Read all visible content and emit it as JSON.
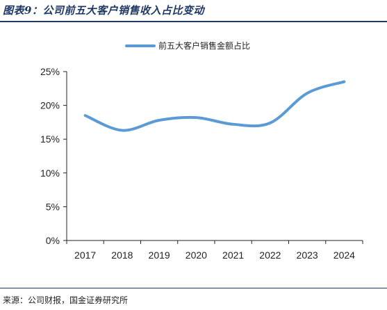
{
  "figure_title": "图表9：公司前五大客户销售收入占比变动",
  "source": "来源：公司财报，国金证券研究所",
  "chart_data": {
    "type": "line",
    "x": [
      "2017",
      "2018",
      "2019",
      "2020",
      "2021",
      "2022",
      "2023",
      "2024"
    ],
    "series": [
      {
        "name": "前五大客户销售金额占比",
        "values": [
          18.5,
          16.3,
          17.8,
          18.2,
          17.2,
          17.4,
          21.8,
          23.5
        ],
        "color": "#5b9bd5"
      }
    ],
    "ylim": [
      0,
      25
    ],
    "yticks": [
      "0%",
      "5%",
      "10%",
      "15%",
      "20%",
      "25%"
    ],
    "legend": "top-center",
    "grid": false
  }
}
